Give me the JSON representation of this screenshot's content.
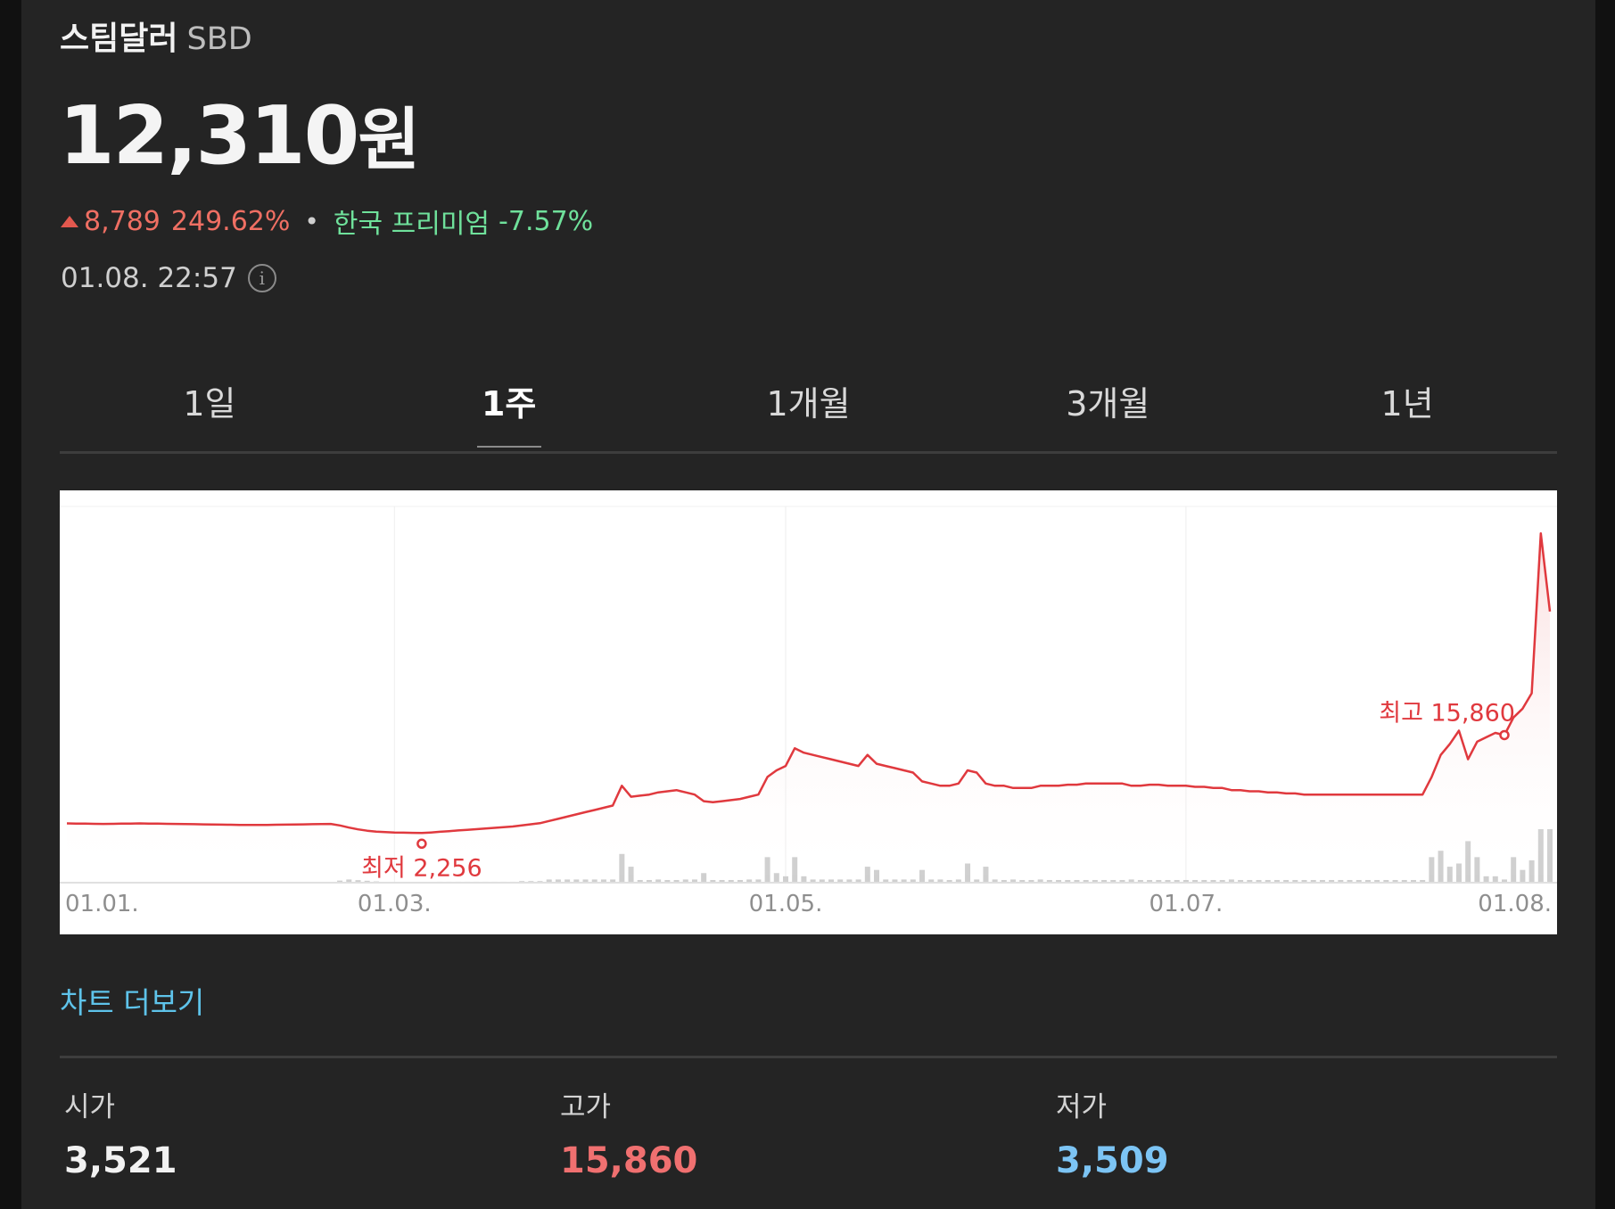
{
  "coin": {
    "name": "스팀달러",
    "symbol": "SBD"
  },
  "price": {
    "value": "12,310",
    "unit": "원"
  },
  "change": {
    "value": "8,789",
    "percent": "249.62%",
    "premium_label": "한국 프리미엄",
    "premium_value": "-7.57%",
    "up_color": "#ef6f63",
    "premium_color": "#6fe19b"
  },
  "timestamp": "01.08. 22:57",
  "info_icon": "info-icon",
  "tabs": [
    {
      "label": "1일",
      "active": false
    },
    {
      "label": "1주",
      "active": true
    },
    {
      "label": "1개월",
      "active": false
    },
    {
      "label": "3개월",
      "active": false
    },
    {
      "label": "1년",
      "active": false
    }
  ],
  "chart_data": {
    "type": "line",
    "title": "",
    "xlabel": "",
    "ylabel": "",
    "x_tick_labels": [
      "01.01.",
      "01.03.",
      "01.05.",
      "01.07.",
      "01.08."
    ],
    "x_tick_index": [
      0,
      36,
      79,
      123,
      160
    ],
    "ylim": [
      0,
      17000
    ],
    "line_color": "#e0393e",
    "volume_color": "#cfcfcf",
    "max_label": "최고 15,860",
    "max_index": 158,
    "min_label": "최저 2,256",
    "min_index": 39,
    "series": [
      {
        "values": [
          2690,
          2684,
          2678,
          2672,
          2666,
          2672,
          2678,
          2684,
          2690,
          2684,
          2678,
          2672,
          2666,
          2660,
          2654,
          2648,
          2642,
          2636,
          2630,
          2624,
          2618,
          2618,
          2624,
          2630,
          2636,
          2642,
          2648,
          2654,
          2660,
          2666,
          2600,
          2500,
          2420,
          2360,
          2320,
          2300,
          2280,
          2270,
          2262,
          2256,
          2280,
          2310,
          2340,
          2370,
          2400,
          2430,
          2460,
          2490,
          2520,
          2550,
          2600,
          2650,
          2700,
          2800,
          2900,
          3000,
          3100,
          3200,
          3300,
          3400,
          3500,
          4400,
          3900,
          3950,
          4000,
          4100,
          4150,
          4200,
          4100,
          4000,
          3700,
          3650,
          3700,
          3750,
          3800,
          3900,
          4000,
          4800,
          5100,
          5300,
          6100,
          5900,
          5800,
          5700,
          5600,
          5500,
          5400,
          5300,
          5800,
          5400,
          5300,
          5200,
          5100,
          5000,
          4600,
          4500,
          4400,
          4400,
          4500,
          5100,
          5000,
          4500,
          4400,
          4400,
          4300,
          4300,
          4300,
          4400,
          4400,
          4400,
          4450,
          4450,
          4500,
          4500,
          4500,
          4500,
          4500,
          4400,
          4400,
          4450,
          4450,
          4400,
          4400,
          4400,
          4350,
          4350,
          4300,
          4300,
          4200,
          4200,
          4150,
          4150,
          4100,
          4100,
          4050,
          4050,
          4000,
          4000,
          4000,
          4000,
          4000,
          4000,
          4000,
          4000,
          4000,
          4000,
          4000,
          4000,
          4000,
          4000,
          4800,
          5800,
          6300,
          6900,
          5600,
          6400,
          6600,
          6800,
          6700,
          7500,
          7900,
          8600,
          15860,
          12310
        ]
      }
    ],
    "volume": [
      0,
      0,
      0,
      0,
      0,
      0,
      0,
      0,
      0,
      0,
      0,
      0,
      0,
      0,
      0,
      0,
      0,
      0,
      0,
      0,
      0,
      0,
      0,
      0,
      0,
      0,
      0,
      0,
      0,
      0,
      0,
      0,
      0,
      0,
      0,
      0,
      0,
      0,
      0,
      0,
      0,
      0,
      0,
      0,
      0,
      0,
      0,
      0,
      0,
      0,
      0,
      0,
      0,
      0,
      0,
      0,
      0,
      0,
      0,
      0,
      0,
      0,
      0,
      0,
      0,
      0,
      0,
      0,
      0,
      0,
      0,
      0,
      0,
      0,
      0,
      0,
      0,
      0,
      0,
      0,
      0,
      0,
      0,
      0,
      0,
      0,
      0,
      0,
      0,
      0,
      0,
      0,
      0,
      0,
      0,
      0,
      0,
      0,
      0,
      0,
      0,
      0,
      0,
      0,
      0,
      0,
      0,
      0,
      0,
      0,
      0,
      0,
      0,
      0,
      0,
      0,
      0,
      0,
      0,
      0,
      0,
      0,
      0,
      0,
      0,
      0,
      0,
      0,
      0,
      0,
      0,
      0,
      0,
      0,
      0,
      0,
      0,
      0,
      0,
      0,
      0,
      0,
      0,
      0,
      0,
      0,
      0,
      0,
      0,
      0,
      0,
      0,
      0,
      0,
      0,
      0,
      0,
      0,
      0,
      0,
      0,
      0
    ]
  },
  "chart_more": "차트 더보기",
  "stats": [
    {
      "label": "시가",
      "value": "3,521",
      "color": "#f2f2f2"
    },
    {
      "label": "고가",
      "value": "15,860",
      "color": "#f07070"
    },
    {
      "label": "저가",
      "value": "3,509",
      "color": "#7cc4f4"
    }
  ]
}
